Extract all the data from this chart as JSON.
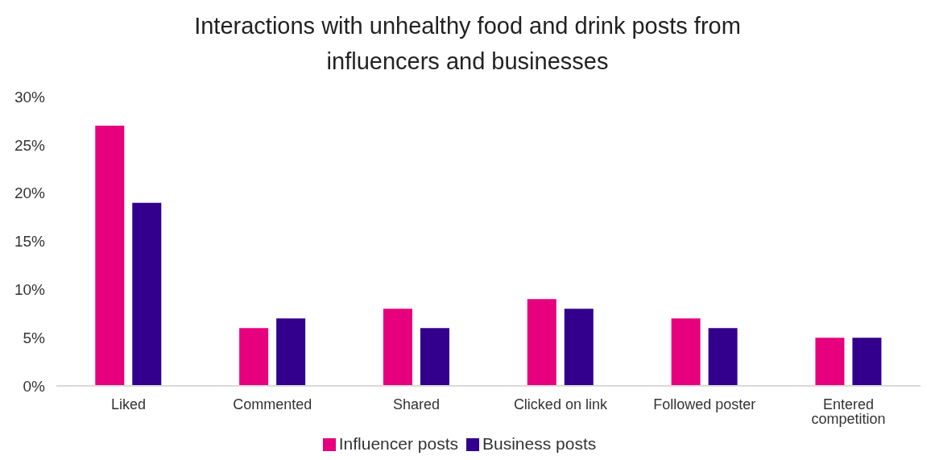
{
  "chart_data": {
    "type": "bar",
    "title": "Interactions with unhealthy food and drink posts from influencers and businesses",
    "categories": [
      "Liked",
      "Commented",
      "Shared",
      "Clicked on link",
      "Followed poster",
      "Entered competition"
    ],
    "series": [
      {
        "name": "Influencer posts",
        "color": "#e6007e",
        "values": [
          27,
          6,
          8,
          9,
          7,
          5
        ]
      },
      {
        "name": "Business posts",
        "color": "#32008c",
        "values": [
          19,
          7,
          6,
          8,
          6,
          5
        ]
      }
    ],
    "ylim": [
      0,
      30
    ],
    "yticks": [
      {
        "value": 0,
        "label": "0%"
      },
      {
        "value": 5,
        "label": "5%"
      },
      {
        "value": 10,
        "label": "10%"
      },
      {
        "value": 15,
        "label": "15%"
      },
      {
        "value": 20,
        "label": "20%"
      },
      {
        "value": 25,
        "label": "25%"
      },
      {
        "value": 30,
        "label": "30%"
      }
    ],
    "grid": false,
    "legend": "bottom"
  }
}
